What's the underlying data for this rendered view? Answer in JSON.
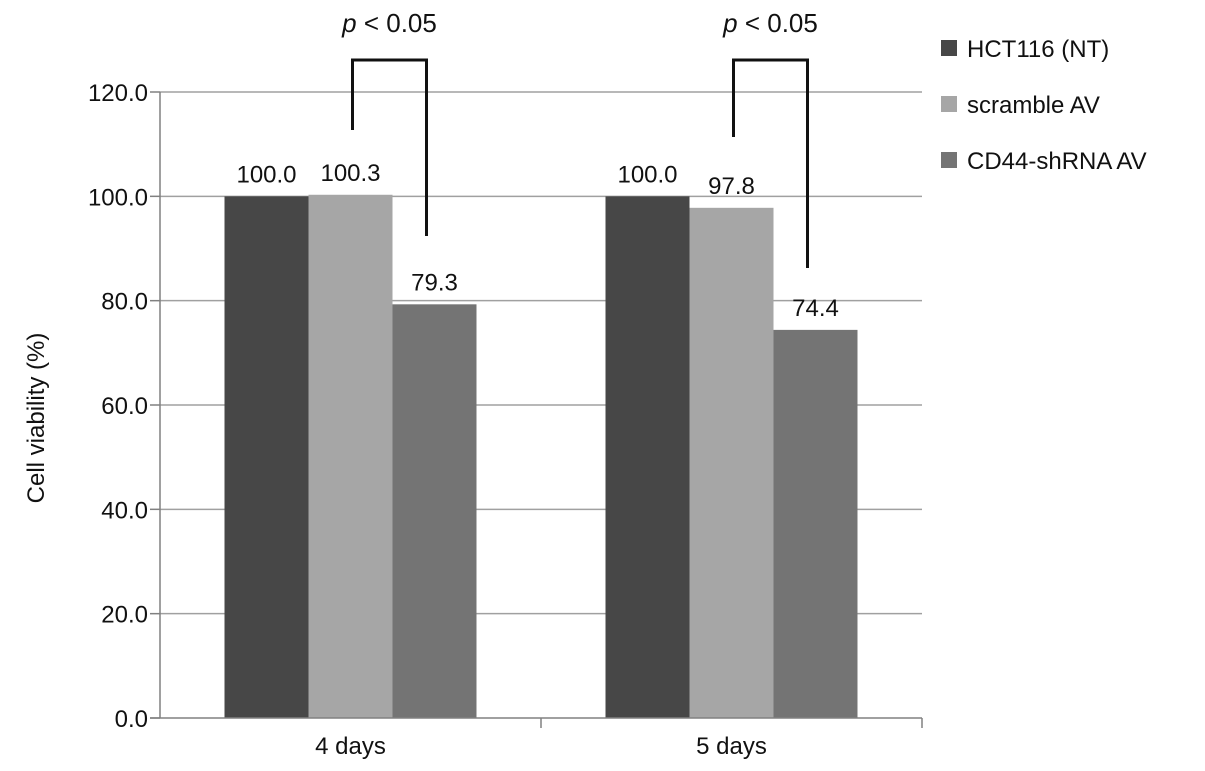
{
  "chart_data": {
    "type": "bar",
    "categories": [
      "4 days",
      "5 days"
    ],
    "series": [
      {
        "name": "HCT116 (NT)",
        "values": [
          100.0,
          100.0
        ],
        "value_labels": [
          "100.0",
          "100.0"
        ],
        "color": "#474747"
      },
      {
        "name": "scramble AV",
        "values": [
          100.3,
          97.8
        ],
        "value_labels": [
          "100.3",
          "97.8"
        ],
        "color": "#a6a6a6"
      },
      {
        "name": "CD44-shRNA AV",
        "values": [
          79.3,
          74.4
        ],
        "value_labels": [
          "79.3",
          "74.4"
        ],
        "color": "#747474"
      }
    ],
    "ylabel": "Cell viability (%)",
    "xlabel": "",
    "ylim": [
      0,
      120
    ],
    "yticks": [
      0,
      20,
      40,
      60,
      80,
      100,
      120
    ],
    "ytick_labels": [
      "0.0",
      "20.0",
      "40.0",
      "60.0",
      "80.0",
      "100.0",
      "120.0"
    ],
    "grid": true,
    "legend_position": "top-right",
    "annotations": [
      {
        "category": "4 days",
        "p_symbol": "p",
        "text": "< 0.05"
      },
      {
        "category": "5 days",
        "p_symbol": "p",
        "text": "< 0.05"
      }
    ]
  }
}
